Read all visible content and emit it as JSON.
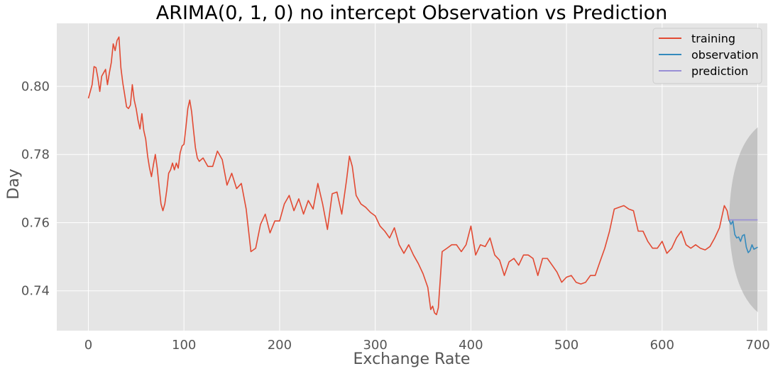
{
  "chart_data": {
    "type": "line",
    "title": "ARIMA(0, 1, 0) no intercept Observation vs Prediction",
    "xlabel": "Exchange Rate",
    "ylabel": "Day",
    "xlim": [
      -33,
      710
    ],
    "ylim": [
      0.7283,
      0.8185
    ],
    "xticks": [
      0,
      100,
      200,
      300,
      400,
      500,
      600,
      700
    ],
    "yticks": [
      0.74,
      0.76,
      0.78,
      0.8
    ],
    "grid": true,
    "legend_position": "top-right",
    "colors": {
      "background": "#e5e5e5",
      "grid": "#ffffff",
      "training": "#e24a33",
      "observation": "#348abd",
      "prediction": "#988ed5",
      "confidence": "#999999"
    },
    "series": [
      {
        "name": "training",
        "x": [
          0,
          2,
          4,
          6,
          8,
          10,
          12,
          14,
          16,
          18,
          20,
          22,
          24,
          26,
          28,
          30,
          32,
          34,
          36,
          38,
          40,
          42,
          44,
          46,
          48,
          50,
          52,
          54,
          56,
          58,
          60,
          62,
          64,
          66,
          68,
          70,
          72,
          74,
          76,
          78,
          80,
          82,
          84,
          86,
          88,
          90,
          92,
          94,
          96,
          98,
          100,
          102,
          104,
          106,
          108,
          110,
          112,
          114,
          116,
          118,
          120,
          125,
          130,
          135,
          140,
          145,
          150,
          155,
          160,
          165,
          170,
          175,
          180,
          185,
          190,
          195,
          200,
          205,
          210,
          215,
          220,
          225,
          230,
          235,
          240,
          245,
          250,
          255,
          260,
          265,
          270,
          273,
          276,
          280,
          285,
          290,
          295,
          300,
          305,
          310,
          315,
          320,
          325,
          330,
          335,
          340,
          345,
          350,
          355,
          358,
          360,
          362,
          364,
          366,
          370,
          375,
          380,
          385,
          390,
          395,
          400,
          405,
          410,
          415,
          420,
          425,
          430,
          435,
          440,
          445,
          450,
          455,
          460,
          465,
          470,
          475,
          480,
          485,
          490,
          495,
          500,
          505,
          510,
          515,
          520,
          525,
          530,
          535,
          540,
          545,
          550,
          555,
          560,
          565,
          570,
          575,
          580,
          585,
          590,
          595,
          600,
          605,
          610,
          615,
          620,
          625,
          630,
          635,
          640,
          645,
          650,
          655,
          660,
          665,
          668,
          670
        ],
        "values": [
          0.7965,
          0.7985,
          0.8005,
          0.8058,
          0.8055,
          0.8025,
          0.7985,
          0.803,
          0.804,
          0.805,
          0.8005,
          0.804,
          0.807,
          0.8125,
          0.8105,
          0.8135,
          0.8145,
          0.8055,
          0.801,
          0.7975,
          0.794,
          0.7935,
          0.7945,
          0.8005,
          0.796,
          0.7935,
          0.79,
          0.7875,
          0.792,
          0.787,
          0.7845,
          0.7795,
          0.776,
          0.7735,
          0.777,
          0.78,
          0.776,
          0.7705,
          0.7655,
          0.7635,
          0.7655,
          0.7695,
          0.7745,
          0.7755,
          0.7775,
          0.7755,
          0.7775,
          0.776,
          0.7805,
          0.7825,
          0.783,
          0.788,
          0.7935,
          0.796,
          0.7925,
          0.787,
          0.782,
          0.779,
          0.778,
          0.7785,
          0.779,
          0.7765,
          0.7765,
          0.781,
          0.7785,
          0.771,
          0.7745,
          0.77,
          0.7715,
          0.764,
          0.7515,
          0.7525,
          0.7595,
          0.7625,
          0.757,
          0.7605,
          0.7605,
          0.7655,
          0.768,
          0.7635,
          0.767,
          0.7625,
          0.7665,
          0.764,
          0.7715,
          0.7655,
          0.758,
          0.7685,
          0.769,
          0.7625,
          0.7725,
          0.7795,
          0.7765,
          0.768,
          0.7655,
          0.7645,
          0.763,
          0.762,
          0.759,
          0.7575,
          0.7555,
          0.7585,
          0.7535,
          0.751,
          0.7535,
          0.7505,
          0.748,
          0.745,
          0.741,
          0.7345,
          0.7355,
          0.7335,
          0.733,
          0.735,
          0.7515,
          0.7525,
          0.7535,
          0.7535,
          0.7515,
          0.7535,
          0.759,
          0.7505,
          0.7535,
          0.753,
          0.7555,
          0.7505,
          0.749,
          0.7445,
          0.7485,
          0.7495,
          0.7475,
          0.7505,
          0.7505,
          0.7495,
          0.7445,
          0.7495,
          0.7495,
          0.7475,
          0.7455,
          0.7425,
          0.744,
          0.7445,
          0.7425,
          0.742,
          0.7425,
          0.7445,
          0.7445,
          0.7485,
          0.7525,
          0.7575,
          0.764,
          0.7645,
          0.765,
          0.764,
          0.7635,
          0.7575,
          0.7575,
          0.7545,
          0.7525,
          0.7525,
          0.7545,
          0.751,
          0.7525,
          0.7555,
          0.7575,
          0.7535,
          0.7525,
          0.7535,
          0.7525,
          0.752,
          0.753,
          0.7555,
          0.7585,
          0.765,
          0.7635,
          0.7605
        ]
      },
      {
        "name": "observation",
        "x": [
          670,
          672,
          674,
          676,
          678,
          680,
          682,
          684,
          686,
          688,
          690,
          692,
          694,
          696,
          698,
          700
        ],
        "values": [
          0.7608,
          0.7595,
          0.7605,
          0.7565,
          0.7555,
          0.7558,
          0.7545,
          0.7562,
          0.7565,
          0.7528,
          0.7512,
          0.7518,
          0.7535,
          0.7522,
          0.7525,
          0.7528
        ]
      },
      {
        "name": "prediction",
        "x": [
          670,
          700
        ],
        "values": [
          0.7608,
          0.7608
        ]
      }
    ],
    "confidence_band": {
      "x": [
        670,
        700
      ],
      "upper_end": 0.788,
      "lower_end": 0.7337,
      "start": 0.7608
    }
  }
}
